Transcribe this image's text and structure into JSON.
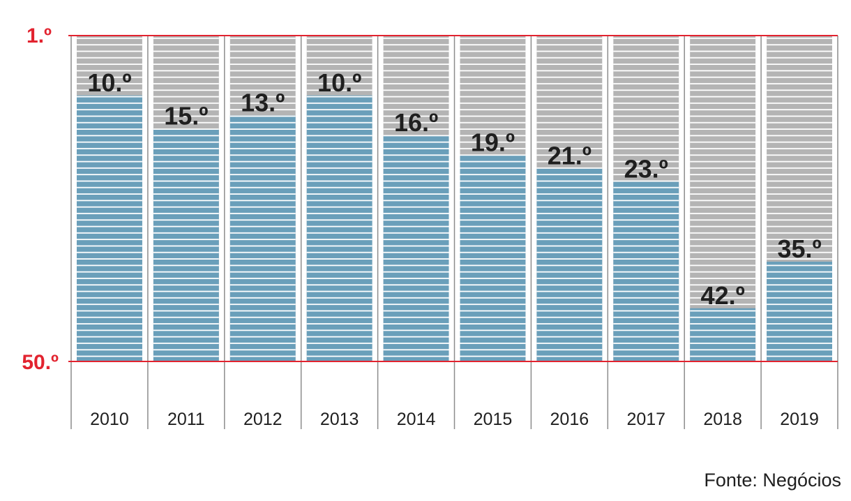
{
  "chart_data": {
    "type": "bar",
    "categories": [
      "2010",
      "2011",
      "2012",
      "2013",
      "2014",
      "2015",
      "2016",
      "2017",
      "2018",
      "2019"
    ],
    "values": [
      10.0,
      15.0,
      13.0,
      10.0,
      16.0,
      19.0,
      21.0,
      23.0,
      42.0,
      35.0
    ],
    "value_labels": [
      "10.º",
      "15.º",
      "13.º",
      "10.º",
      "16.º",
      "19.º",
      "21.º",
      "23.º",
      "42.º",
      "35.º"
    ],
    "y_axis": {
      "inverted": true,
      "range": [
        1,
        50
      ],
      "top_label": "1.º",
      "bottom_label": "50.º"
    },
    "colors": {
      "bar": "#6a9fba",
      "background_column": "#b4b4b4",
      "stripe": "#ffffff",
      "axis_line": "#e2232f",
      "separator": "#8c8c8c"
    },
    "grid": false,
    "legend": "none"
  },
  "source": "Fonte: Negócios"
}
